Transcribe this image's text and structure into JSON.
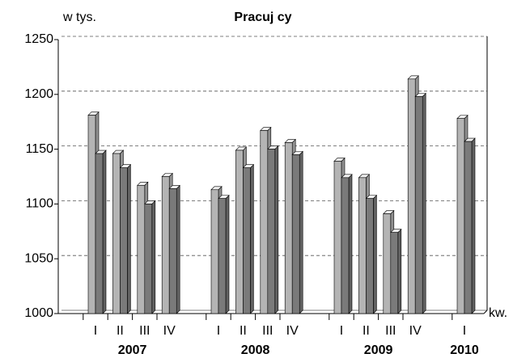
{
  "chart_data": {
    "type": "bar",
    "title": "Pracuj cy",
    "y_label": "w tys.",
    "x_label": "kw.",
    "groups": [
      {
        "label": "2007",
        "categories": [
          "I",
          "II",
          "III",
          "IV"
        ]
      },
      {
        "label": "2008",
        "categories": [
          "I",
          "II",
          "III",
          "IV"
        ]
      },
      {
        "label": "2009",
        "categories": [
          "I",
          "II",
          "III",
          "IV"
        ]
      },
      {
        "label": "2010",
        "categories": [
          "I"
        ]
      }
    ],
    "series": [
      {
        "color": "#b4b4b4",
        "values": [
          1181,
          1146,
          1117,
          1125,
          1113,
          1149,
          1167,
          1156,
          1139,
          1124,
          1091,
          1214,
          1178
        ]
      },
      {
        "color": "#7a7a7a",
        "values": [
          1146,
          1133,
          1100,
          1114,
          1105,
          1133,
          1150,
          1145,
          1124,
          1105,
          1074,
          1198,
          1157
        ]
      }
    ],
    "ylim": [
      1000,
      1250
    ],
    "yticks": [
      1000,
      1050,
      1100,
      1150,
      1200,
      1250
    ],
    "grid": true
  }
}
